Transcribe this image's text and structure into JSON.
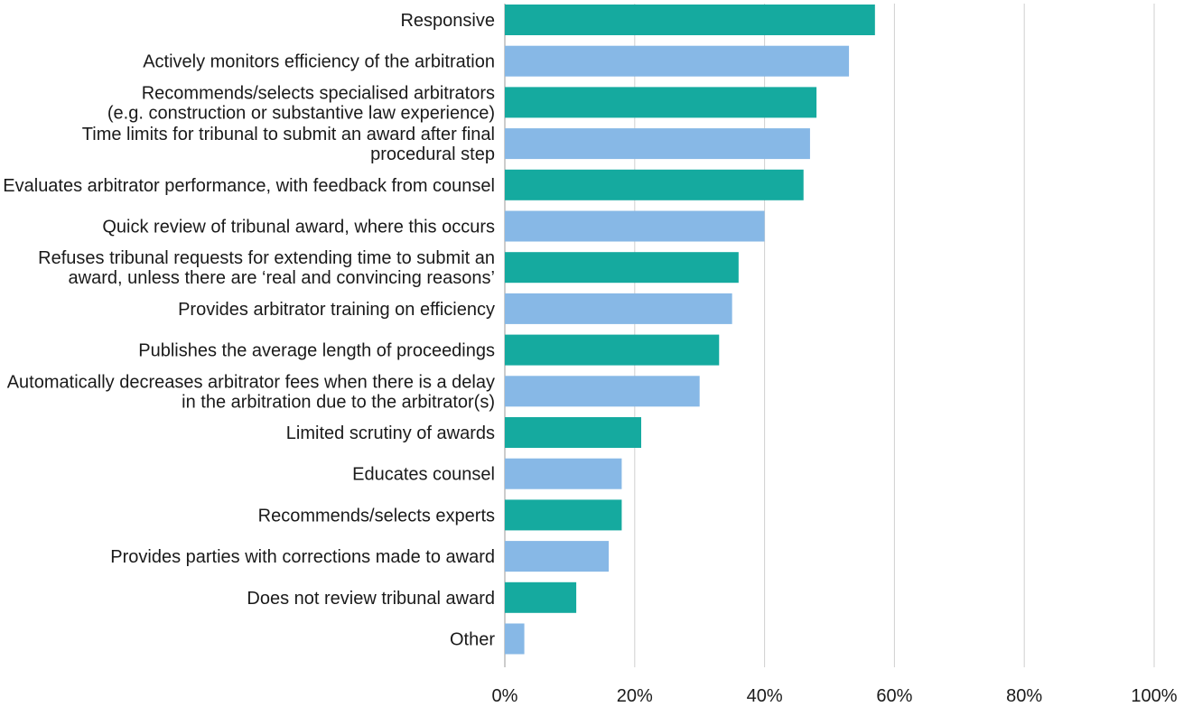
{
  "chart_data": {
    "type": "bar",
    "orientation": "horizontal",
    "title": "",
    "xlabel": "",
    "ylabel": "",
    "xlim": [
      0,
      100
    ],
    "x_ticks": [
      0,
      20,
      40,
      60,
      80,
      100
    ],
    "x_tick_labels": [
      "0%",
      "20%",
      "40%",
      "60%",
      "80%",
      "100%"
    ],
    "grid": "vertical",
    "legend": "none",
    "colors": {
      "teal": "#15aa9f",
      "blue": "#87b8e6"
    },
    "categories": [
      [
        "Responsive"
      ],
      [
        "Actively monitors efficiency of the arbitration"
      ],
      [
        "Recommends/selects specialised arbitrators",
        "(e.g. construction or substantive law experience)"
      ],
      [
        "Time limits for tribunal to submit an award after final",
        "procedural step"
      ],
      [
        "Evaluates arbitrator performance, with feedback from counsel"
      ],
      [
        "Quick review of tribunal award, where this occurs"
      ],
      [
        "Refuses tribunal requests for extending time to submit an",
        "award, unless there are ‘real and convincing reasons’"
      ],
      [
        "Provides arbitrator training on efficiency"
      ],
      [
        "Publishes the average length of proceedings"
      ],
      [
        "Automatically decreases arbitrator fees when there is a delay",
        "in the arbitration due to the arbitrator(s)"
      ],
      [
        "Limited scrutiny of awards"
      ],
      [
        "Educates counsel"
      ],
      [
        "Recommends/selects experts"
      ],
      [
        "Provides parties with corrections made to award"
      ],
      [
        "Does not review tribunal award"
      ],
      [
        "Other"
      ]
    ],
    "values": [
      57,
      53,
      48,
      47,
      46,
      40,
      36,
      35,
      33,
      30,
      21,
      18,
      18,
      16,
      11,
      3
    ],
    "bar_colors": [
      "teal",
      "blue",
      "teal",
      "blue",
      "teal",
      "blue",
      "teal",
      "blue",
      "teal",
      "blue",
      "teal",
      "blue",
      "teal",
      "blue",
      "teal",
      "blue"
    ]
  }
}
